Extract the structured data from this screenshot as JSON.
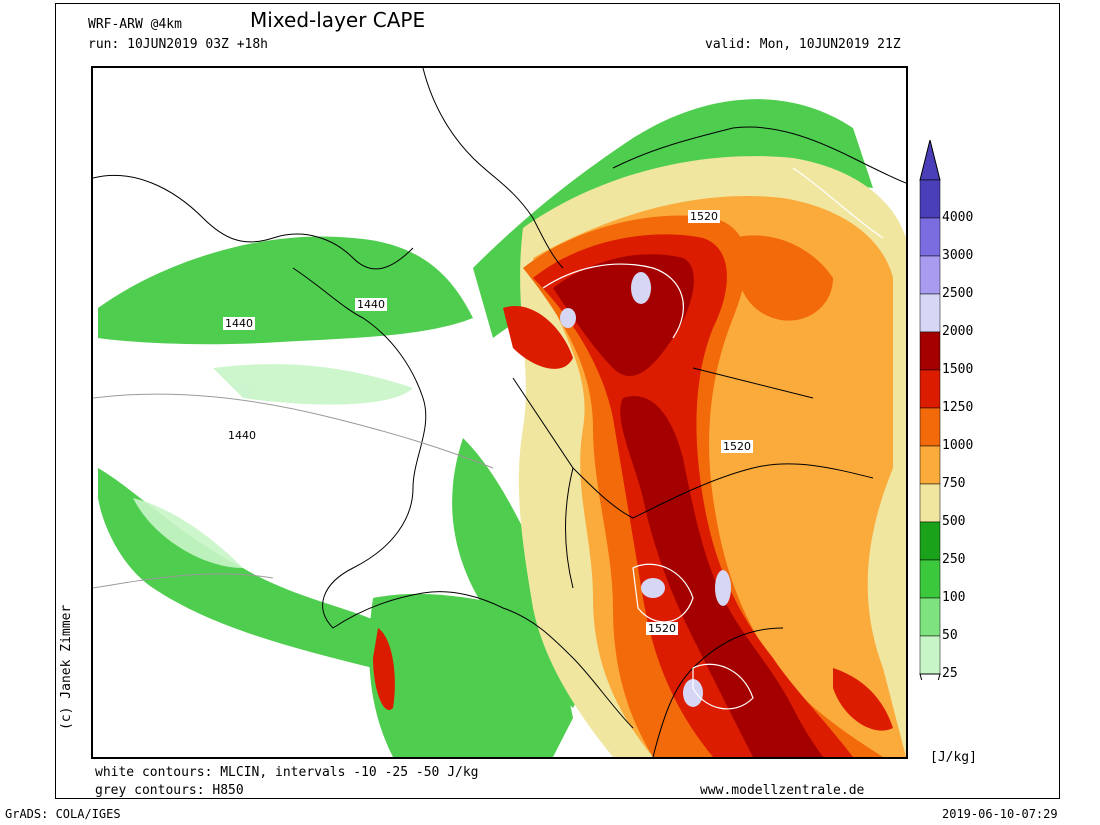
{
  "header": {
    "model": "WRF-ARW @4km",
    "title": "Mixed-layer CAPE",
    "run": "run: 10JUN2019 03Z +18h",
    "valid": "valid: Mon, 10JUN2019 21Z"
  },
  "credit": "(c) Janek Zimmer",
  "footer": {
    "white_contours": "white contours: MLCIN, intervals -10 -25 -50 J/kg",
    "grey_contours": "grey contours: H850",
    "website": "www.modellzentrale.de",
    "grads": "GrADS: COLA/IGES",
    "timestamp": "2019-06-10-07:29"
  },
  "legend": {
    "unit": "[J/kg]",
    "levels": [
      {
        "label": "4000",
        "color": "#4a3fb8"
      },
      {
        "label": "3000",
        "color": "#7b6de0"
      },
      {
        "label": "2500",
        "color": "#a99cf0"
      },
      {
        "label": "2000",
        "color": "#d6d6f5"
      },
      {
        "label": "1500",
        "color": "#a50000"
      },
      {
        "label": "1250",
        "color": "#dc1c00"
      },
      {
        "label": "1000",
        "color": "#f26a0a"
      },
      {
        "label": "750",
        "color": "#fbaa3c"
      },
      {
        "label": "500",
        "color": "#f0e6a0"
      },
      {
        "label": "250",
        "color": "#1aa21a"
      },
      {
        "label": "100",
        "color": "#3cc83c"
      },
      {
        "label": "50",
        "color": "#7ee27e"
      },
      {
        "label": "25",
        "color": "#c8f5c8"
      }
    ]
  },
  "contour_labels": [
    "1440",
    "1440",
    "1440",
    "1520",
    "1520",
    "1520"
  ]
}
